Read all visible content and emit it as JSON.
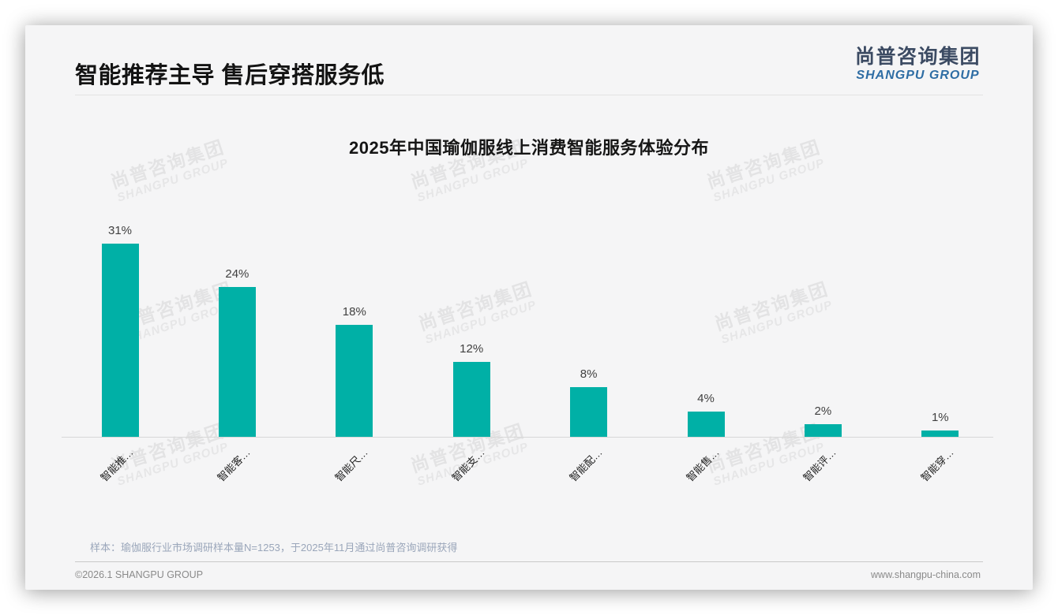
{
  "page": {
    "title": "智能推荐主导 售后穿搭服务低",
    "logo": {
      "zh": "尚普咨询集团",
      "en": "SHANGPU GROUP"
    },
    "watermark": {
      "zh": "尚普咨询集团",
      "en": "SHANGPU GROUP"
    },
    "note": "样本：瑜伽服行业市场调研样本量N=1253，于2025年11月通过尚普咨询调研获得",
    "footer": {
      "left": "©2026.1 SHANGPU GROUP",
      "right": "www.shangpu-china.com"
    }
  },
  "colors": {
    "bar": "#00B0A6",
    "logo_zh": "#3c4b63",
    "logo_en": "#2e6da4",
    "value_label": "#404040",
    "note": "#9aa6ba"
  },
  "chart_data": {
    "type": "bar",
    "title": "2025年中国瑜伽服线上消费智能服务体验分布",
    "categories": [
      "智能推…",
      "智能客…",
      "智能尺…",
      "智能支…",
      "智能配…",
      "智能售…",
      "智能评…",
      "智能穿…"
    ],
    "values": [
      31,
      24,
      18,
      12,
      8,
      4,
      2,
      1
    ],
    "value_labels": [
      "31%",
      "24%",
      "18%",
      "12%",
      "8%",
      "4%",
      "2%",
      "1%"
    ],
    "unit": "%",
    "bar_color": "#00B0A6",
    "ylim": [
      0,
      35
    ],
    "grid": false,
    "legend": null,
    "x_tick_rotation": -45
  }
}
